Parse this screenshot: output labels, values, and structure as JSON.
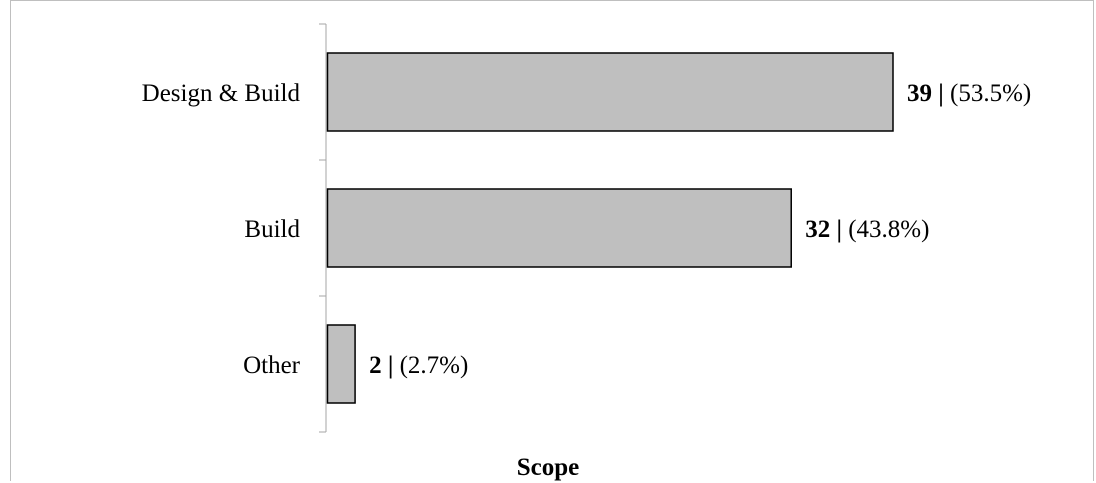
{
  "chart_data": {
    "type": "bar",
    "orientation": "horizontal",
    "categories": [
      "Design & Build",
      "Build",
      "Other"
    ],
    "values": [
      39,
      32,
      2
    ],
    "percent_labels": [
      "(53.5%)",
      "(43.8%)",
      "(2.7%)"
    ],
    "value_separator": "|",
    "xlabel": "Scope",
    "xlim": [
      0,
      41
    ],
    "bar_color": "#bfbfbf",
    "bar_edge_color": "#000000",
    "grid": false,
    "legend": "none"
  }
}
